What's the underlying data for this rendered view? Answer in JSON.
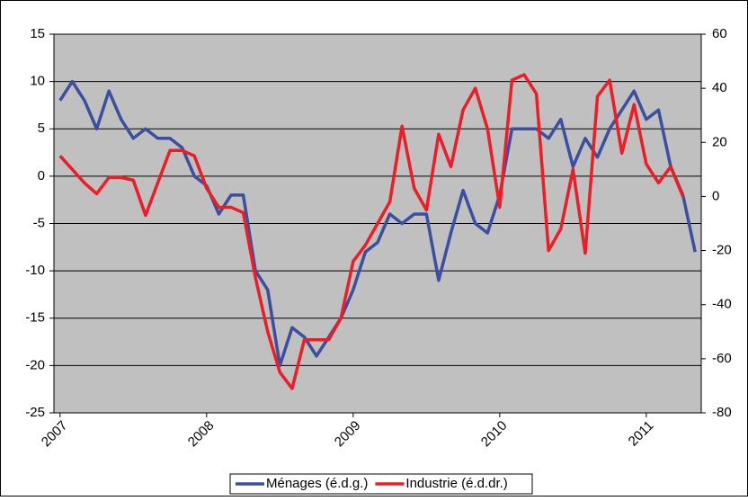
{
  "chart_data": {
    "type": "line",
    "categories": [
      "2007",
      null,
      null,
      null,
      null,
      null,
      null,
      null,
      null,
      null,
      null,
      null,
      "2008",
      null,
      null,
      null,
      null,
      null,
      null,
      null,
      null,
      null,
      null,
      null,
      "2009",
      null,
      null,
      null,
      null,
      null,
      null,
      null,
      null,
      null,
      null,
      null,
      "2010",
      null,
      null,
      null,
      null,
      null,
      null,
      null,
      null,
      null,
      null,
      null,
      "2011",
      null,
      null,
      null,
      null
    ],
    "series": [
      {
        "name": "Ménages (é.d.g.)",
        "color": "#3a4fa0",
        "values": [
          8,
          10,
          8,
          5,
          9,
          6,
          4,
          5,
          4,
          4,
          3,
          0,
          -1,
          -4,
          -2,
          -2,
          -10,
          -12,
          -20,
          -16,
          -17,
          -19,
          -17,
          -15,
          -12,
          -8,
          -7,
          -4,
          -5,
          -4,
          -4,
          -11,
          -6,
          -1.5,
          -5,
          -6,
          -2,
          5,
          5,
          5,
          4,
          6,
          1,
          4,
          2,
          5,
          7,
          9,
          6,
          7,
          1,
          -2,
          -8
        ]
      },
      {
        "name": "Industrie (é.d.dr.)",
        "color": "#ee1c25",
        "axis": "y2",
        "values": [
          15,
          10,
          5,
          1,
          7,
          7,
          6,
          -7,
          5,
          17,
          17,
          15,
          3,
          -4,
          -4,
          -6,
          -30,
          -50,
          -65,
          -71,
          -53,
          -53,
          -53,
          -45,
          -24,
          -18,
          -10,
          -2,
          26,
          3,
          -5,
          23,
          11,
          32,
          40,
          25,
          -4,
          43,
          45,
          38,
          -20,
          -12,
          10,
          -21,
          37,
          43,
          16,
          34,
          12,
          5,
          11,
          0,
          null
        ]
      }
    ],
    "ylim": [
      -25,
      15
    ],
    "yticks": [
      -25,
      -20,
      -15,
      -10,
      -5,
      0,
      5,
      10,
      15
    ],
    "y2lim": [
      -80,
      60
    ],
    "y2ticks": [
      -80,
      -60,
      -40,
      -20,
      0,
      20,
      40,
      60
    ],
    "grid": true,
    "plot_background": "#c0c0c0",
    "legend": "bottom"
  }
}
